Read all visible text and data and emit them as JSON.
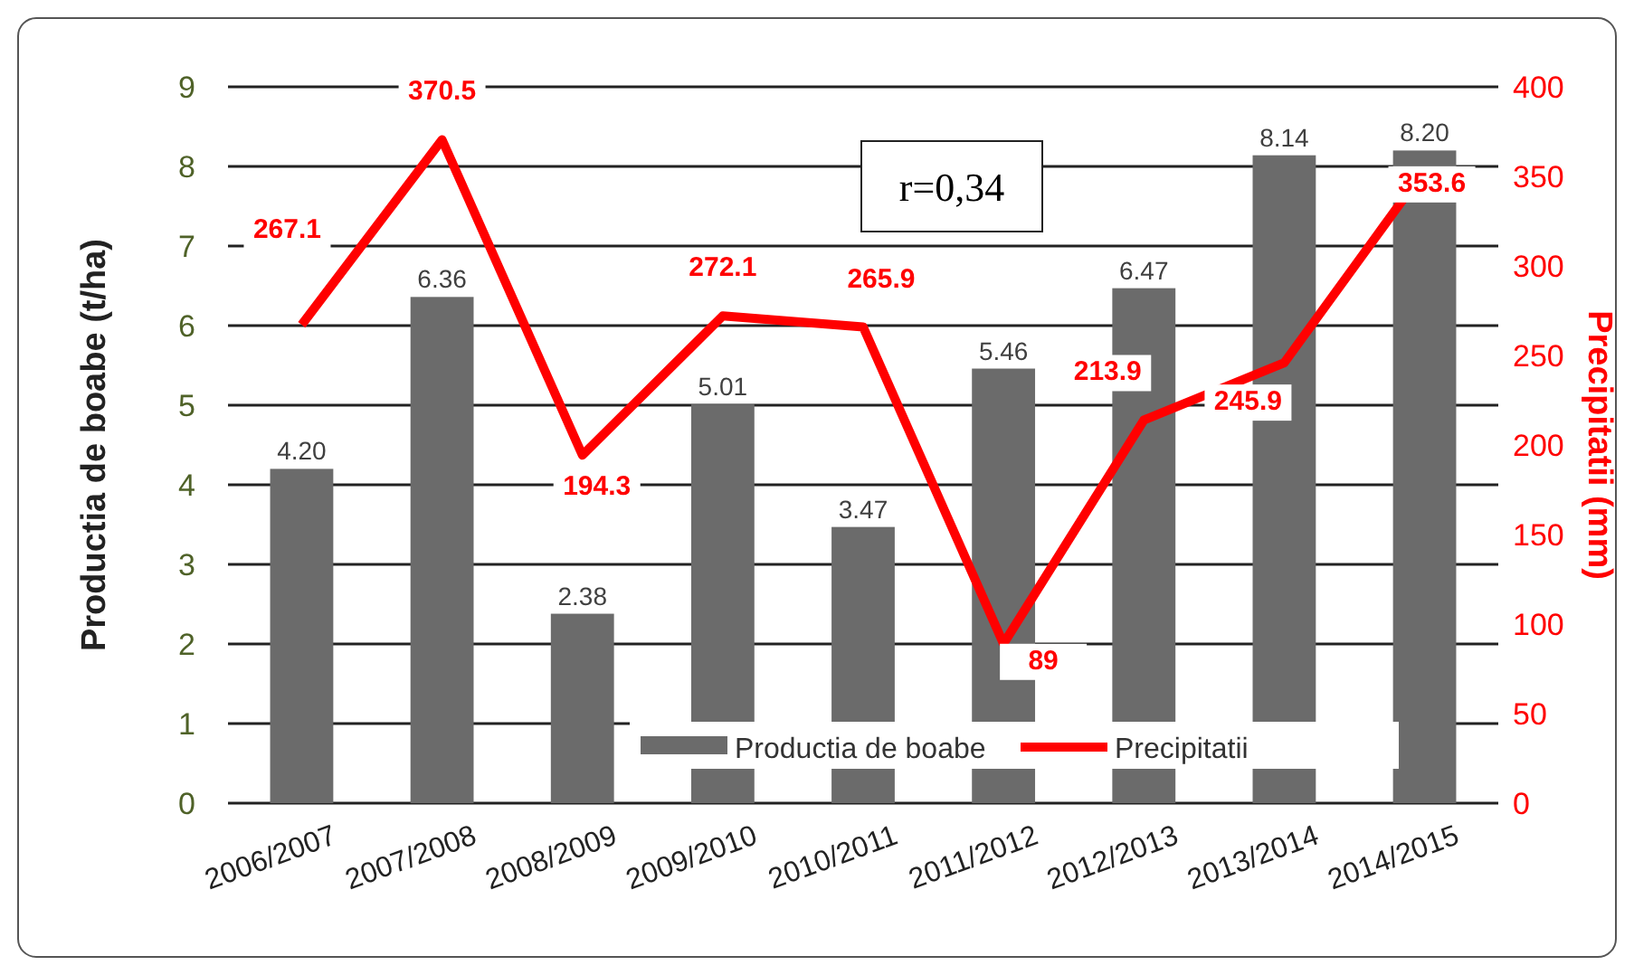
{
  "chart_data": {
    "type": "bar",
    "categories": [
      "2006/2007",
      "2007/2008",
      "2008/2009",
      "2009/2010",
      "2010/2011",
      "2011/2012",
      "2012/2013",
      "2013/2014",
      "2014/2015"
    ],
    "series": [
      {
        "name": "Productia de boabe",
        "color": "#6b6b6b",
        "values": [
          4.2,
          6.36,
          2.38,
          5.01,
          3.47,
          5.46,
          6.47,
          8.14,
          8.2
        ],
        "value_labels": [
          "4.20",
          "6.36",
          "2.38",
          "5.01",
          "3.47",
          "5.46",
          "6.47",
          "8.14",
          "8.20"
        ]
      },
      {
        "name": "Precipitatii",
        "type": "line",
        "axis": "y2",
        "color": "#ff0000",
        "values": [
          267.1,
          370.5,
          194.3,
          272.1,
          265.9,
          89,
          213.9,
          245.9,
          353.6
        ],
        "value_labels": [
          "267.1",
          "370.5",
          "194.3",
          "272.1",
          "265.9",
          "89",
          "213.9",
          "245.9",
          "353.6"
        ]
      }
    ],
    "ylabel": "Productia de boabe (t/ha)",
    "y2label": "Precipitatii (mm)",
    "ylim": [
      0,
      9
    ],
    "yticks": [
      0,
      1,
      2,
      3,
      4,
      5,
      6,
      7,
      8,
      9
    ],
    "y2lim": [
      0,
      400
    ],
    "y2ticks": [
      0,
      50,
      100,
      150,
      200,
      250,
      300,
      350,
      400
    ],
    "grid": "y",
    "legend": "bottom",
    "marker": "none",
    "line_style": "solid",
    "annotations": [
      "r=0,34"
    ]
  }
}
